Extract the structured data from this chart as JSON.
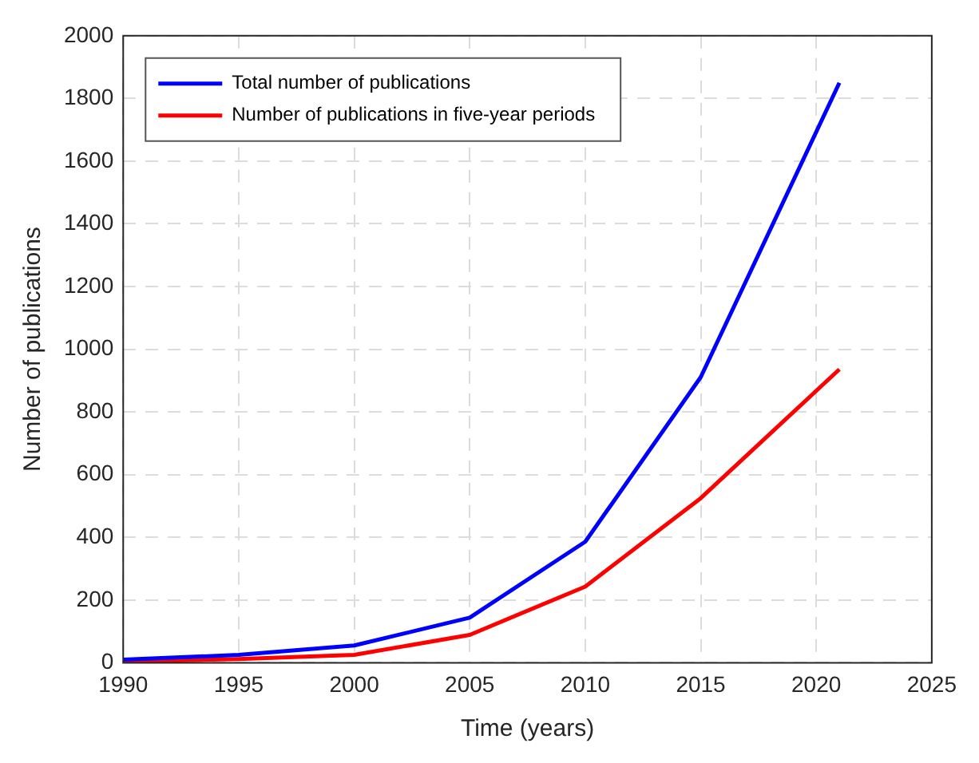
{
  "chart_data": {
    "type": "line",
    "xlabel": "Time (years)",
    "ylabel": "Number of publications",
    "x": [
      1990,
      1995,
      2000,
      2005,
      2010,
      2015,
      2021
    ],
    "series": [
      {
        "name": "Total number of publications",
        "color": "#0000ff",
        "values": [
          10,
          25,
          55,
          144,
          386,
          911,
          1850
        ]
      },
      {
        "name": "Number of publications in five-year periods",
        "color": "#ff0000",
        "values": [
          3,
          12,
          25,
          89,
          243,
          525,
          936
        ]
      }
    ],
    "xlim": [
      1990,
      2025
    ],
    "xticks": [
      1990,
      1995,
      2000,
      2005,
      2010,
      2015,
      2020,
      2025
    ],
    "ylim": [
      0,
      2000
    ],
    "yticks": [
      0,
      200,
      400,
      600,
      800,
      1000,
      1200,
      1400,
      1600,
      1800,
      2000
    ],
    "grid": true,
    "legend": "top left",
    "marker": "none",
    "line_style": "solid"
  }
}
